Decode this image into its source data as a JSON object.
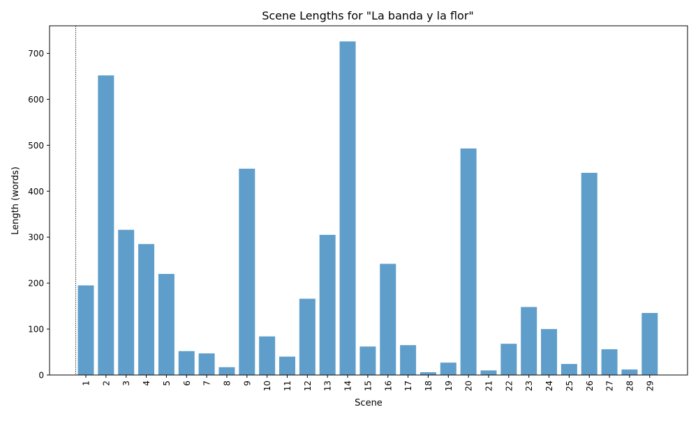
{
  "chart_data": {
    "type": "bar",
    "title": "Scene Lengths for \"La banda y la flor\"",
    "xlabel": "Scene",
    "ylabel": "Length (words)",
    "categories": [
      "1",
      "2",
      "3",
      "4",
      "5",
      "6",
      "7",
      "8",
      "9",
      "10",
      "11",
      "12",
      "13",
      "14",
      "15",
      "16",
      "17",
      "18",
      "19",
      "20",
      "21",
      "22",
      "23",
      "24",
      "25",
      "26",
      "27",
      "28",
      "29"
    ],
    "values": [
      195,
      652,
      316,
      285,
      220,
      52,
      47,
      17,
      449,
      84,
      40,
      166,
      305,
      726,
      62,
      242,
      65,
      6,
      27,
      493,
      10,
      68,
      148,
      100,
      24,
      440,
      56,
      12,
      135
    ],
    "ylim": [
      0,
      760
    ],
    "yticks": [
      0,
      100,
      200,
      300,
      400,
      500,
      600,
      700
    ],
    "grid": false,
    "bar_color": "#5f9ecb",
    "reference_line": {
      "x": 0.5,
      "style": "dotted",
      "color": "#000000"
    }
  }
}
